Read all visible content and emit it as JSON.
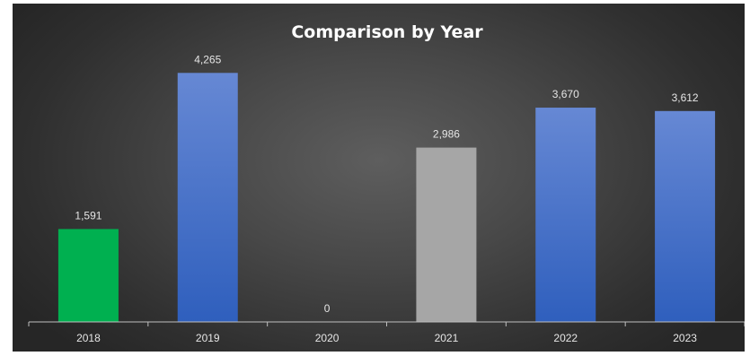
{
  "chart_data": {
    "type": "bar",
    "title": "Comparison by Year",
    "xlabel": "",
    "ylabel": "",
    "categories": [
      "2018",
      "2019",
      "2020",
      "2021",
      "2022",
      "2023"
    ],
    "values": [
      1591,
      4265,
      0,
      2986,
      3670,
      3612
    ],
    "value_labels": [
      "1,591",
      "4,265",
      "0",
      "2,986",
      "3,670",
      "3,612"
    ],
    "bar_colors": [
      "#00b050",
      "#4472c4",
      "#4472c4",
      "#a6a6a6",
      "#4472c4",
      "#4472c4"
    ],
    "ylim": [
      0,
      4500
    ],
    "grid": false,
    "legend": "none",
    "background": "#404040"
  }
}
